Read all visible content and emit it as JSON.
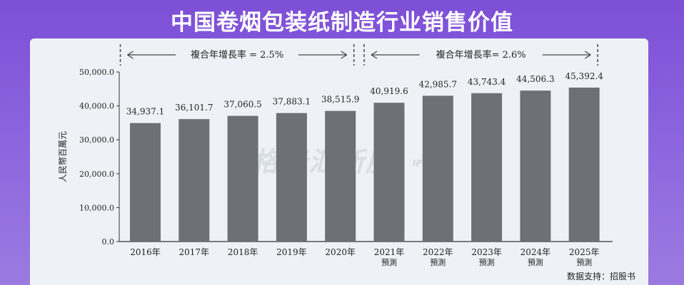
{
  "header": {
    "title": "中国卷烟包装纸制造行业销售价值"
  },
  "chart_data": {
    "type": "bar",
    "ylabel": "人民幣百萬元",
    "ylim": [
      0,
      50000
    ],
    "yticks": [
      0,
      10000,
      20000,
      30000,
      40000,
      50000
    ],
    "ytick_labels": [
      "0.0",
      "10,000.0",
      "20,000.0",
      "30,000.0",
      "40,000.0",
      "50,000.0"
    ],
    "categories": [
      "2016年",
      "2017年",
      "2018年",
      "2019年",
      "2020年",
      "2021年",
      "2022年",
      "2023年",
      "2024年",
      "2025年"
    ],
    "category_sublabels": [
      "",
      "",
      "",
      "",
      "",
      "預測",
      "預測",
      "預測",
      "預測",
      "預測"
    ],
    "values": [
      34937.1,
      36101.7,
      37060.5,
      37883.1,
      38515.9,
      40919.6,
      42985.7,
      43743.4,
      44506.3,
      45392.4
    ],
    "data_labels": [
      "34,937.1",
      "36,101.7",
      "37,060.5",
      "37,883.1",
      "38,515.9",
      "40,919.6",
      "42,985.7",
      "43,743.4",
      "44,506.3",
      "45,392.4"
    ],
    "bar_color": "#6d7076",
    "grid": false,
    "annotations": [
      {
        "text": "複合年增長率 = 2.5%",
        "from_category": 0,
        "to_category": 4
      },
      {
        "text": "複合年增長率= 2.6%",
        "from_category": 5,
        "to_category": 9
      }
    ]
  },
  "watermark": {
    "text": "格隆汇新股",
    "sub": "IPO"
  },
  "footer": {
    "source": "数据支持：招股书"
  }
}
